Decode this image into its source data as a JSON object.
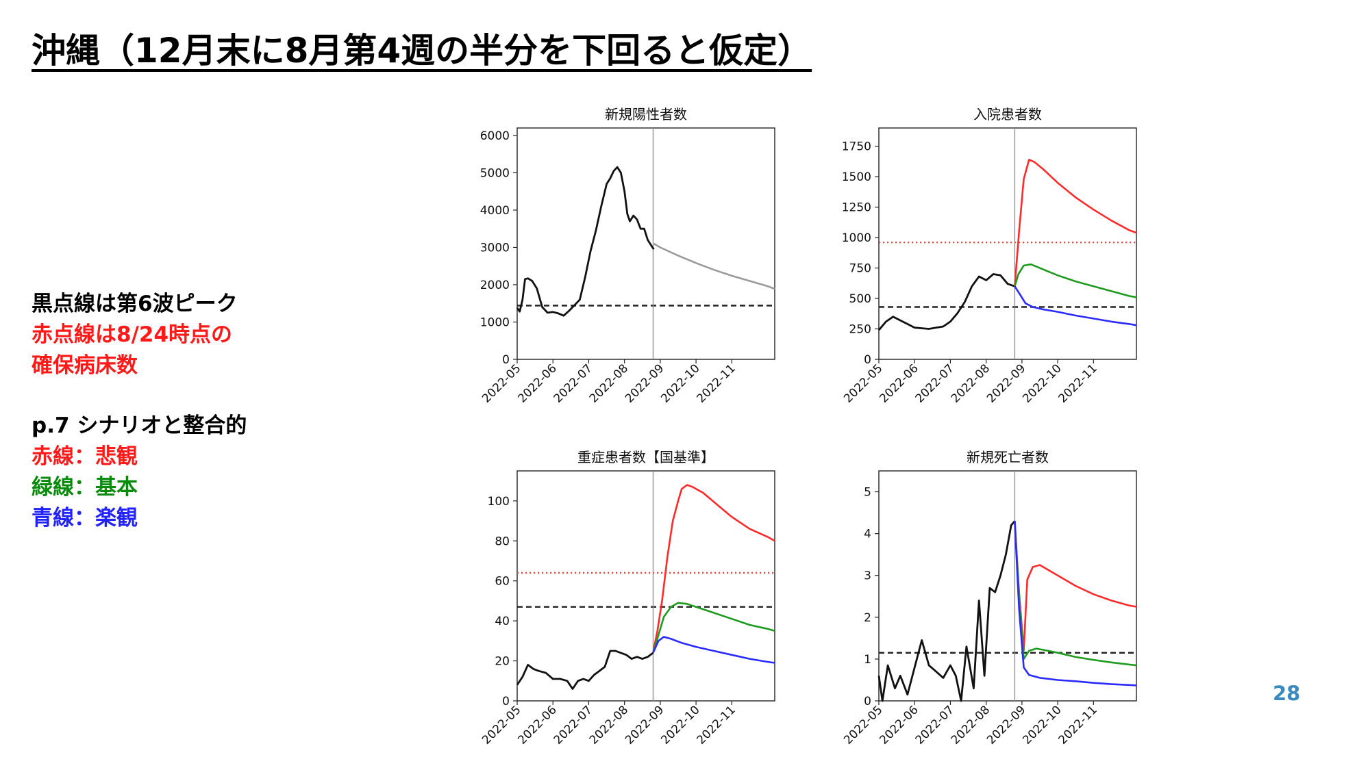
{
  "title": "沖縄（12月末に8月第4週の半分を下回ると仮定）",
  "notes": {
    "line1": "黒点線は第6波ピーク",
    "line2": "赤点線は8/24時点の",
    "line3": "確保病床数",
    "line4": "p.7 シナリオと整合的",
    "line5": "赤線：悲観",
    "line6": "緑線：基本",
    "line7": "青線：楽観"
  },
  "page_number": "28",
  "colors": {
    "observed": "#111111",
    "projection_gray": "#9a9a9a",
    "pessimistic": "#ff2a2a",
    "base": "#1e9a1e",
    "optimistic": "#2a2aff",
    "sixth_wave_peak": "#222222",
    "secured_beds": "#ff4040",
    "divider": "#8a8a8a"
  },
  "chart_data": [
    {
      "type": "line",
      "title": "新規陽性者数",
      "xlim": [
        0,
        7.2
      ],
      "x_tick_values": [
        0,
        1,
        2,
        3,
        4,
        5,
        6
      ],
      "x_tick_labels": [
        "2022-05",
        "2022-06",
        "2022-07",
        "2022-08",
        "2022-09",
        "2022-10",
        "2022-11"
      ],
      "ylim": [
        0,
        6200
      ],
      "y_ticks": [
        0,
        1000,
        2000,
        3000,
        4000,
        5000,
        6000
      ],
      "divider_x": 3.8,
      "hlines": [
        {
          "y": 1440,
          "style": "dashed",
          "color_key": "sixth_wave_peak"
        }
      ],
      "series": [
        {
          "color_key": "observed",
          "x": [
            0,
            0.07,
            0.15,
            0.22,
            0.3,
            0.42,
            0.55,
            0.7,
            0.85,
            1.0,
            1.15,
            1.3,
            1.45,
            1.6,
            1.75,
            1.9,
            2.05,
            2.2,
            2.35,
            2.5,
            2.6,
            2.7,
            2.8,
            2.9,
            3.0,
            3.08,
            3.15,
            3.25,
            3.35,
            3.45,
            3.55,
            3.65,
            3.75,
            3.82
          ],
          "y": [
            1380,
            1280,
            1600,
            2150,
            2170,
            2100,
            1900,
            1400,
            1250,
            1270,
            1230,
            1170,
            1300,
            1450,
            1600,
            2200,
            2900,
            3450,
            4100,
            4700,
            4850,
            5050,
            5150,
            5000,
            4500,
            3900,
            3700,
            3850,
            3750,
            3500,
            3500,
            3200,
            3050,
            2950
          ]
        },
        {
          "color_key": "projection_gray",
          "x": [
            3.82,
            4.0,
            4.5,
            5.0,
            5.5,
            6.0,
            6.5,
            7.0,
            7.2
          ],
          "y": [
            3100,
            3000,
            2780,
            2580,
            2400,
            2240,
            2100,
            1960,
            1890
          ]
        }
      ]
    },
    {
      "type": "line",
      "title": "入院患者数",
      "xlim": [
        0,
        7.2
      ],
      "x_tick_values": [
        0,
        1,
        2,
        3,
        4,
        5,
        6
      ],
      "x_tick_labels": [
        "2022-05",
        "2022-06",
        "2022-07",
        "2022-08",
        "2022-09",
        "2022-10",
        "2022-11"
      ],
      "ylim": [
        0,
        1900
      ],
      "y_ticks": [
        0,
        250,
        500,
        750,
        1000,
        1250,
        1500,
        1750
      ],
      "divider_x": 3.8,
      "hlines": [
        {
          "y": 430,
          "style": "dashed",
          "color_key": "sixth_wave_peak"
        },
        {
          "y": 960,
          "style": "dotted",
          "color_key": "secured_beds"
        }
      ],
      "series": [
        {
          "color_key": "observed",
          "x": [
            0,
            0.2,
            0.4,
            0.6,
            0.8,
            1.0,
            1.2,
            1.4,
            1.6,
            1.8,
            2.0,
            2.2,
            2.4,
            2.6,
            2.8,
            3.0,
            3.2,
            3.4,
            3.6,
            3.8
          ],
          "y": [
            240,
            310,
            350,
            320,
            290,
            260,
            255,
            250,
            260,
            270,
            310,
            380,
            470,
            600,
            680,
            650,
            700,
            690,
            620,
            600
          ]
        },
        {
          "color_key": "pessimistic",
          "x": [
            3.8,
            3.92,
            4.05,
            4.2,
            4.35,
            4.6,
            5.0,
            5.5,
            6.0,
            6.5,
            7.0,
            7.2
          ],
          "y": [
            600,
            1050,
            1480,
            1640,
            1620,
            1560,
            1450,
            1330,
            1230,
            1140,
            1060,
            1040
          ]
        },
        {
          "color_key": "base",
          "x": [
            3.8,
            3.9,
            4.05,
            4.25,
            4.5,
            5.0,
            5.5,
            6.0,
            6.5,
            7.0,
            7.2
          ],
          "y": [
            600,
            700,
            770,
            780,
            750,
            690,
            640,
            600,
            560,
            520,
            510
          ]
        },
        {
          "color_key": "optimistic",
          "x": [
            3.8,
            3.95,
            4.1,
            4.3,
            4.6,
            5.0,
            5.5,
            6.0,
            6.5,
            7.0,
            7.2
          ],
          "y": [
            600,
            530,
            460,
            430,
            410,
            390,
            360,
            335,
            310,
            290,
            280
          ]
        }
      ]
    },
    {
      "type": "line",
      "title": "重症患者数【国基準】",
      "xlim": [
        0,
        7.2
      ],
      "x_tick_values": [
        0,
        1,
        2,
        3,
        4,
        5,
        6
      ],
      "x_tick_labels": [
        "2022-05",
        "2022-06",
        "2022-07",
        "2022-08",
        "2022-09",
        "2022-10",
        "2022-11"
      ],
      "ylim": [
        0,
        115
      ],
      "y_ticks": [
        0,
        20,
        40,
        60,
        80,
        100
      ],
      "divider_x": 3.8,
      "hlines": [
        {
          "y": 47,
          "style": "dashed",
          "color_key": "sixth_wave_peak"
        },
        {
          "y": 64,
          "style": "dotted",
          "color_key": "secured_beds"
        }
      ],
      "series": [
        {
          "color_key": "observed",
          "x": [
            0,
            0.15,
            0.3,
            0.45,
            0.6,
            0.8,
            1.0,
            1.2,
            1.4,
            1.55,
            1.7,
            1.85,
            2.0,
            2.15,
            2.3,
            2.45,
            2.6,
            2.75,
            2.9,
            3.05,
            3.2,
            3.35,
            3.5,
            3.65,
            3.8
          ],
          "y": [
            8,
            12,
            18,
            16,
            15,
            14,
            11,
            11,
            10,
            6,
            10,
            11,
            10,
            13,
            15,
            17,
            25,
            25,
            24,
            23,
            21,
            22,
            21,
            22,
            24
          ]
        },
        {
          "color_key": "pessimistic",
          "x": [
            3.8,
            3.92,
            4.05,
            4.2,
            4.35,
            4.5,
            4.6,
            4.75,
            4.9,
            5.2,
            5.6,
            6.0,
            6.5,
            7.0,
            7.2
          ],
          "y": [
            24,
            35,
            50,
            72,
            90,
            100,
            106,
            108,
            107,
            104,
            98,
            92,
            86,
            82,
            80
          ]
        },
        {
          "color_key": "base",
          "x": [
            3.8,
            3.95,
            4.1,
            4.3,
            4.5,
            4.75,
            5.0,
            5.5,
            6.0,
            6.5,
            7.0,
            7.2
          ],
          "y": [
            24,
            33,
            42,
            47,
            49,
            48.5,
            47,
            44,
            41,
            38,
            36,
            35
          ]
        },
        {
          "color_key": "optimistic",
          "x": [
            3.8,
            3.95,
            4.1,
            4.3,
            4.6,
            5.0,
            5.5,
            6.0,
            6.5,
            7.0,
            7.2
          ],
          "y": [
            24,
            30,
            32,
            31,
            29,
            27,
            25,
            23,
            21,
            19.5,
            19
          ]
        }
      ]
    },
    {
      "type": "line",
      "title": "新規死亡者数",
      "xlim": [
        0,
        7.2
      ],
      "x_tick_values": [
        0,
        1,
        2,
        3,
        4,
        5,
        6
      ],
      "x_tick_labels": [
        "2022-05",
        "2022-06",
        "2022-07",
        "2022-08",
        "2022-09",
        "2022-10",
        "2022-11"
      ],
      "ylim": [
        0,
        5.5
      ],
      "y_ticks": [
        0,
        1,
        2,
        3,
        4,
        5
      ],
      "divider_x": 3.8,
      "hlines": [
        {
          "y": 1.15,
          "style": "dashed",
          "color_key": "sixth_wave_peak"
        }
      ],
      "series": [
        {
          "color_key": "observed",
          "x": [
            0,
            0.1,
            0.25,
            0.45,
            0.6,
            0.8,
            1.0,
            1.2,
            1.4,
            1.6,
            1.8,
            2.0,
            2.15,
            2.3,
            2.45,
            2.65,
            2.8,
            2.95,
            3.1,
            3.25,
            3.4,
            3.55,
            3.7,
            3.8
          ],
          "y": [
            0.6,
            0,
            0.85,
            0.3,
            0.6,
            0.15,
            0.8,
            1.45,
            0.85,
            0.7,
            0.55,
            0.85,
            0.6,
            0,
            1.3,
            0.3,
            2.4,
            0.6,
            2.7,
            2.6,
            3.0,
            3.5,
            4.2,
            4.3
          ]
        },
        {
          "color_key": "pessimistic",
          "x": [
            3.8,
            3.92,
            4.05,
            4.15,
            4.3,
            4.5,
            4.7,
            5.0,
            5.5,
            6.0,
            6.5,
            7.0,
            7.2
          ],
          "y": [
            4.3,
            2.6,
            1.2,
            2.9,
            3.2,
            3.25,
            3.15,
            3.0,
            2.75,
            2.55,
            2.4,
            2.28,
            2.25
          ]
        },
        {
          "color_key": "base",
          "x": [
            3.8,
            3.92,
            4.05,
            4.2,
            4.4,
            4.6,
            5.0,
            5.5,
            6.0,
            6.5,
            7.0,
            7.2
          ],
          "y": [
            4.3,
            2.5,
            1.0,
            1.2,
            1.25,
            1.22,
            1.15,
            1.05,
            0.98,
            0.92,
            0.87,
            0.85
          ]
        },
        {
          "color_key": "optimistic",
          "x": [
            3.8,
            3.92,
            4.05,
            4.2,
            4.5,
            5.0,
            5.5,
            6.0,
            6.5,
            7.0,
            7.2
          ],
          "y": [
            4.3,
            2.2,
            0.8,
            0.62,
            0.55,
            0.5,
            0.47,
            0.43,
            0.4,
            0.38,
            0.37
          ]
        }
      ]
    }
  ]
}
